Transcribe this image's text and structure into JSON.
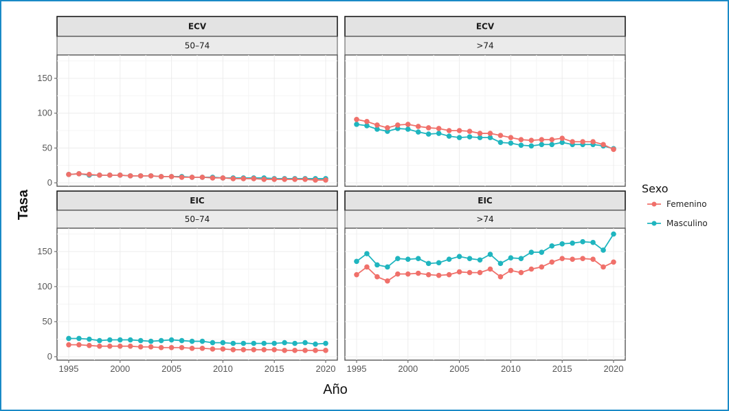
{
  "chart_data": {
    "type": "line",
    "title": "",
    "xlabel": "Año",
    "ylabel": "Tasa",
    "x": [
      1995,
      1996,
      1997,
      1998,
      1999,
      2000,
      2001,
      2002,
      2003,
      2004,
      2005,
      2006,
      2007,
      2008,
      2009,
      2010,
      2011,
      2012,
      2013,
      2014,
      2015,
      2016,
      2017,
      2018,
      2019,
      2020
    ],
    "x_ticks": [
      "1995",
      "2000",
      "2005",
      "2010",
      "2015",
      "2020"
    ],
    "y_ticks": [
      "0",
      "50",
      "100",
      "150"
    ],
    "ylim": [
      0,
      180
    ],
    "xlim": [
      1994,
      2021
    ],
    "grid": true,
    "legend": {
      "title": "Sexo",
      "placement": "right",
      "entries": [
        {
          "name": "Femenino",
          "color": "#F0706A"
        },
        {
          "name": "Masculino",
          "color": "#1FB5BF"
        }
      ]
    },
    "panels": [
      {
        "strip_top": "ECV",
        "strip_bottom": "50–74",
        "series": [
          {
            "name": "Femenino",
            "values": [
              12,
              13,
              12,
              11,
              11,
              11,
              10,
              10,
              10,
              9,
              9,
              8,
              8,
              8,
              7,
              7,
              6,
              6,
              6,
              5,
              5,
              5,
              5,
              5,
              4,
              4
            ]
          },
          {
            "name": "Masculino",
            "values": [
              12,
              13,
              11,
              11,
              11,
              11,
              10,
              10,
              10,
              9,
              9,
              9,
              8,
              8,
              8,
              7,
              7,
              7,
              7,
              7,
              6,
              6,
              6,
              6,
              6,
              6
            ]
          }
        ]
      },
      {
        "strip_top": "ECV",
        "strip_bottom": ">74",
        "series": [
          {
            "name": "Femenino",
            "values": [
              91,
              88,
              83,
              79,
              83,
              84,
              81,
              79,
              78,
              75,
              75,
              74,
              71,
              71,
              68,
              65,
              62,
              61,
              62,
              62,
              64,
              59,
              59,
              59,
              55,
              48
            ]
          },
          {
            "name": "Masculino",
            "values": [
              84,
              82,
              77,
              74,
              78,
              77,
              73,
              70,
              71,
              67,
              65,
              66,
              65,
              65,
              58,
              57,
              54,
              53,
              55,
              55,
              58,
              55,
              55,
              55,
              53,
              49
            ]
          }
        ]
      },
      {
        "strip_top": "EIC",
        "strip_bottom": "50–74",
        "series": [
          {
            "name": "Femenino",
            "values": [
              17,
              17,
              16,
              15,
              15,
              15,
              15,
              14,
              14,
              13,
              13,
              13,
              12,
              12,
              11,
              11,
              10,
              10,
              10,
              10,
              10,
              9,
              9,
              9,
              9,
              9
            ]
          },
          {
            "name": "Masculino",
            "values": [
              26,
              26,
              25,
              23,
              24,
              24,
              24,
              23,
              22,
              23,
              24,
              23,
              22,
              22,
              20,
              20,
              19,
              19,
              19,
              19,
              19,
              20,
              19,
              20,
              18,
              19
            ]
          }
        ]
      },
      {
        "strip_top": "EIC",
        "strip_bottom": ">74",
        "series": [
          {
            "name": "Femenino",
            "values": [
              117,
              128,
              114,
              108,
              118,
              118,
              119,
              117,
              116,
              117,
              121,
              120,
              120,
              125,
              114,
              123,
              120,
              125,
              128,
              135,
              140,
              139,
              140,
              139,
              128,
              135
            ]
          },
          {
            "name": "Masculino",
            "values": [
              136,
              147,
              131,
              128,
              140,
              139,
              140,
              133,
              134,
              139,
              143,
              140,
              138,
              146,
              133,
              141,
              140,
              149,
              149,
              158,
              161,
              162,
              164,
              163,
              152,
              175
            ]
          }
        ]
      }
    ]
  }
}
